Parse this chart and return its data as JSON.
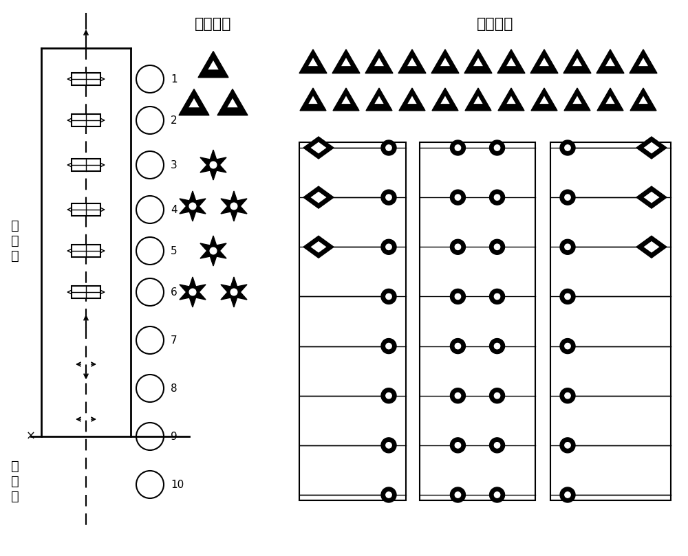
{
  "title_narrow": "窄面喷嘴",
  "title_wide": "宽面喷嘴",
  "label_vertical": "垂\n直\n段",
  "label_curve": "弯\n曲\n段",
  "roll_numbers": [
    1,
    2,
    3,
    4,
    5,
    6,
    7,
    8,
    9,
    10
  ],
  "bg_color": "#ffffff",
  "text_color": "#000000",
  "font_size_title": 16,
  "font_size_label": 14
}
